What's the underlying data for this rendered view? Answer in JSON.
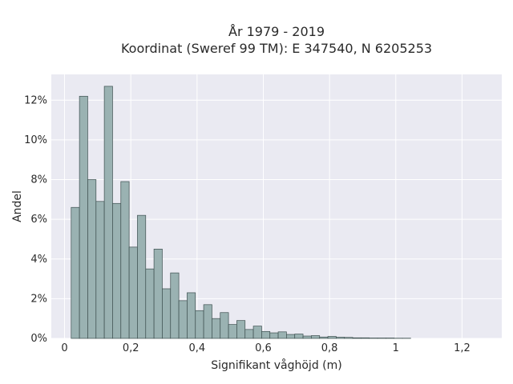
{
  "chart_data": {
    "type": "histogram",
    "title": [
      "År 1979 - 2019",
      "Koordinat (Sweref 99 TM): E 347540, N 6205253"
    ],
    "xlabel": "Signifikant våghöjd (m)",
    "ylabel": "Andel",
    "xlim": [
      -0.04,
      1.32
    ],
    "ylim": [
      0,
      13.3
    ],
    "x_ticks": [
      0,
      0.2,
      0.4,
      0.6,
      0.8,
      1,
      1.2
    ],
    "x_tick_labels": [
      "0",
      "0,2",
      "0,4",
      "0,6",
      "0,8",
      "1",
      "1,2"
    ],
    "y_ticks": [
      0,
      2,
      4,
      6,
      8,
      10,
      12
    ],
    "y_tick_labels": [
      "0%",
      "2%",
      "4%",
      "6%",
      "8%",
      "10%",
      "12%"
    ],
    "grid": true,
    "bin_start": 0.02,
    "bin_width": 0.025,
    "values": [
      6.6,
      12.2,
      8.0,
      6.9,
      12.7,
      6.8,
      7.9,
      4.6,
      6.2,
      3.5,
      4.5,
      2.5,
      3.3,
      1.9,
      2.3,
      1.4,
      1.7,
      1.0,
      1.3,
      0.7,
      0.9,
      0.45,
      0.62,
      0.35,
      0.28,
      0.33,
      0.2,
      0.22,
      0.12,
      0.14,
      0.07,
      0.1,
      0.06,
      0.05,
      0.03,
      0.03,
      0.02,
      0.02,
      0.02,
      0.01,
      0.01
    ],
    "colors": {
      "bar_fill": "#9ab2b2",
      "bar_edge": "#3d4f4f",
      "plot_bg": "#eaeaf2",
      "grid": "#ffffff"
    }
  }
}
